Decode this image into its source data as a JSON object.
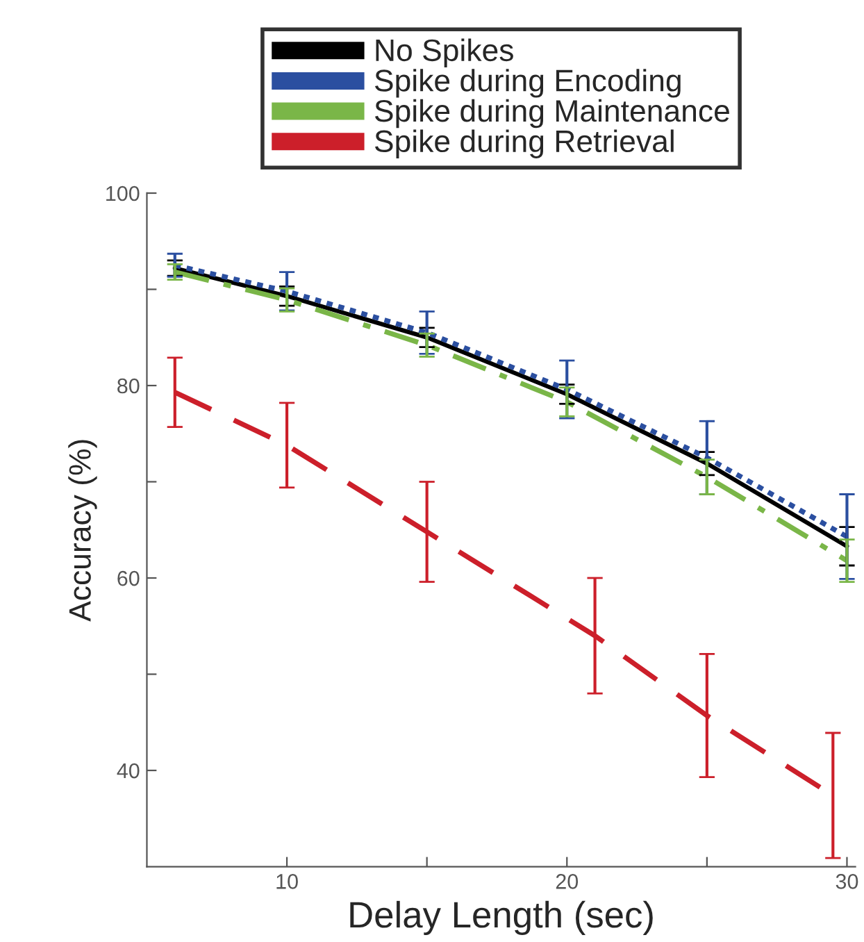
{
  "chart_data": {
    "type": "line",
    "xlabel": "Delay Length (sec)",
    "ylabel": "Accuracy (%)",
    "x": [
      6,
      10,
      15,
      20,
      25,
      30
    ],
    "series": [
      {
        "name": "No Spikes",
        "color": "#000000",
        "line_style": "solid",
        "values": [
          92.2,
          89.3,
          85.0,
          79.1,
          71.9,
          63.3
        ],
        "errors": [
          0.8,
          1,
          1,
          1,
          1.2,
          2
        ]
      },
      {
        "name": "Spike during Encoding",
        "color": "#2b4fa0",
        "line_style": "dotted",
        "values": [
          92.5,
          89.8,
          85.5,
          79.6,
          72.5,
          64.3
        ],
        "errors": [
          1.2,
          2,
          2.2,
          3,
          3.8,
          4.4
        ]
      },
      {
        "name": "Spike during Maintenance",
        "color": "#7ab648",
        "line_style": "dashdot",
        "values": [
          91.8,
          88.9,
          84.2,
          78.3,
          70.5,
          61.8
        ],
        "errors": [
          0.8,
          1.2,
          1.2,
          1.5,
          1.8,
          2.2
        ]
      },
      {
        "name": "Spike during Retrieval",
        "color": "#cc1f2a",
        "line_style": "dashed",
        "x": [
          6,
          10,
          15,
          21,
          25,
          29.5
        ],
        "values": [
          79.3,
          73.8,
          64.8,
          54.0,
          45.7,
          37.4
        ],
        "errors": [
          3.6,
          4.4,
          5.2,
          6,
          6.4,
          6.5
        ]
      }
    ],
    "xlim": [
      5,
      30.3
    ],
    "ylim": [
      30,
      100
    ],
    "xticks": [
      10,
      {
        "value": 15,
        "label": null
      },
      20,
      {
        "value": 25,
        "label": null
      },
      30
    ],
    "yticks": [
      40,
      {
        "value": 50,
        "label": null
      },
      60,
      {
        "value": 70,
        "label": null
      },
      80,
      {
        "value": 90,
        "label": null
      },
      100
    ],
    "legend": "top",
    "grid": false,
    "marker": "none"
  }
}
